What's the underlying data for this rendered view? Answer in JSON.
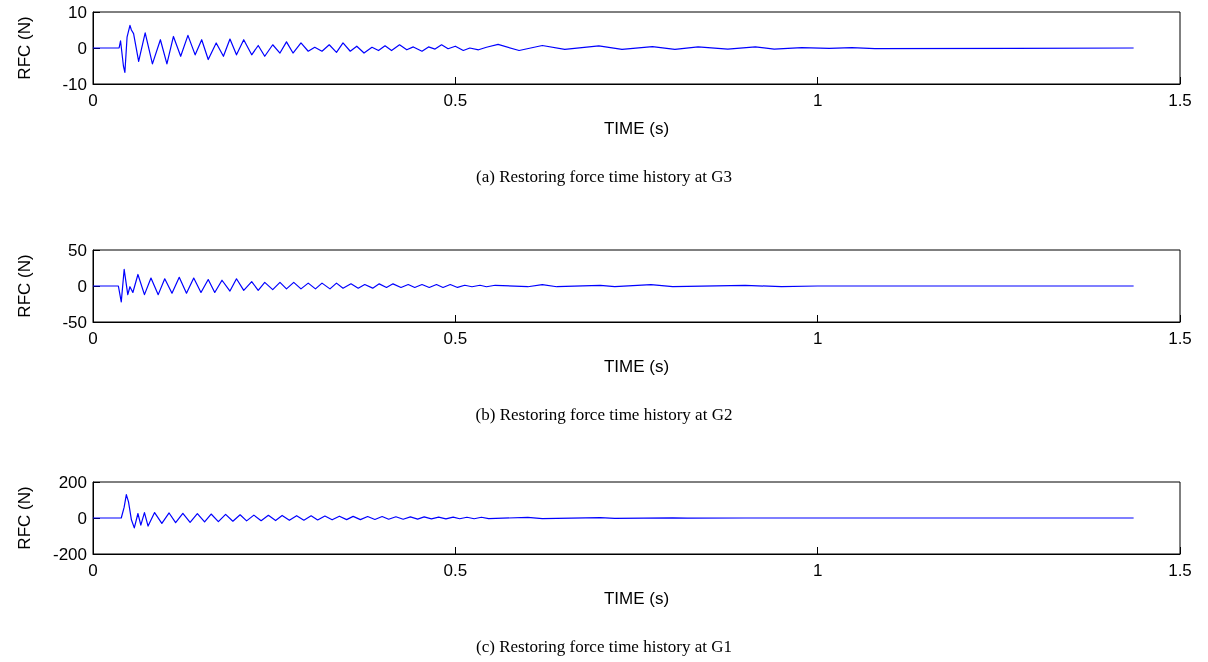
{
  "chart_data": [
    {
      "type": "line",
      "xlabel": "TIME (s)",
      "ylabel": "RFC (N)",
      "annotations": [
        "(a) Restoring force time history at G3"
      ],
      "xlim": [
        0,
        1.5
      ],
      "xticks": [
        0,
        0.5,
        1,
        1.5
      ],
      "ylim": [
        -10,
        10
      ],
      "yticks": [
        -10,
        0,
        10
      ],
      "grid": false,
      "marker": "none",
      "line_style": "solid",
      "series": [
        {
          "color": "#0000ff",
          "x": [
            0,
            0.036,
            0.038,
            0.042,
            0.044,
            0.047,
            0.051,
            0.053,
            0.056,
            0.063,
            0.072,
            0.082,
            0.093,
            0.102,
            0.111,
            0.121,
            0.131,
            0.141,
            0.15,
            0.159,
            0.17,
            0.18,
            0.189,
            0.198,
            0.208,
            0.219,
            0.228,
            0.237,
            0.248,
            0.258,
            0.267,
            0.276,
            0.287,
            0.297,
            0.306,
            0.316,
            0.326,
            0.336,
            0.345,
            0.355,
            0.364,
            0.374,
            0.385,
            0.394,
            0.403,
            0.412,
            0.423,
            0.433,
            0.442,
            0.454,
            0.463,
            0.472,
            0.481,
            0.49,
            0.5,
            0.511,
            0.52,
            0.532,
            0.543,
            0.559,
            0.588,
            0.62,
            0.651,
            0.698,
            0.73,
            0.772,
            0.803,
            0.835,
            0.876,
            0.914,
            0.94,
            0.978,
            1.016,
            1.047,
            1.079,
            1.436
          ],
          "values": [
            0,
            0,
            2,
            -5,
            -6.8,
            3,
            6.3,
            5,
            4,
            -3.7,
            4.2,
            -4.4,
            2.3,
            -4.4,
            3.2,
            -2.3,
            3.5,
            -1.9,
            2.3,
            -3.2,
            1.4,
            -2.3,
            2.5,
            -1.9,
            2.3,
            -1.9,
            0.7,
            -2.3,
            0.9,
            -1.4,
            1.7,
            -1.4,
            1.4,
            -0.9,
            0.2,
            -0.9,
            0.9,
            -1.2,
            1.4,
            -0.9,
            0.5,
            -1.4,
            0.2,
            -0.7,
            0.6,
            -0.7,
            0.9,
            -0.5,
            0.3,
            -0.9,
            0.3,
            -0.3,
            0.9,
            -0.2,
            0.5,
            -0.7,
            0,
            -0.5,
            0.2,
            1,
            -0.7,
            0.7,
            -0.4,
            0.6,
            -0.4,
            0.4,
            -0.4,
            0.3,
            -0.3,
            0.3,
            -0.3,
            0.1,
            -0.1,
            0.1,
            -0.2,
            0
          ]
        }
      ]
    },
    {
      "type": "line",
      "xlabel": "TIME (s)",
      "ylabel": "RFC (N)",
      "annotations": [
        "(b) Restoring force time history at G2"
      ],
      "xlim": [
        0,
        1.5
      ],
      "xticks": [
        0,
        0.5,
        1,
        1.5
      ],
      "ylim": [
        -50,
        50
      ],
      "yticks": [
        -50,
        0,
        50
      ],
      "grid": false,
      "marker": "none",
      "line_style": "solid",
      "series": [
        {
          "color": "#0000ff",
          "x": [
            0,
            0.035,
            0.039,
            0.043,
            0.048,
            0.051,
            0.055,
            0.062,
            0.071,
            0.08,
            0.09,
            0.099,
            0.109,
            0.119,
            0.129,
            0.139,
            0.149,
            0.159,
            0.168,
            0.178,
            0.189,
            0.198,
            0.208,
            0.219,
            0.228,
            0.237,
            0.248,
            0.258,
            0.267,
            0.277,
            0.287,
            0.297,
            0.307,
            0.316,
            0.327,
            0.336,
            0.345,
            0.356,
            0.366,
            0.375,
            0.386,
            0.395,
            0.405,
            0.414,
            0.425,
            0.435,
            0.444,
            0.454,
            0.464,
            0.474,
            0.483,
            0.493,
            0.503,
            0.513,
            0.523,
            0.534,
            0.543,
            0.555,
            0.6,
            0.62,
            0.64,
            0.7,
            0.72,
            0.77,
            0.8,
            0.9,
            0.95,
            1.0,
            1.436
          ],
          "values": [
            0,
            0,
            -22,
            23,
            -12,
            -1,
            -9,
            16,
            -12,
            11,
            -12,
            10,
            -10,
            12,
            -10,
            11,
            -9,
            9,
            -9,
            8,
            -7,
            10,
            -6,
            6,
            -6,
            5,
            -5,
            5,
            -4,
            5,
            -4,
            4,
            -4,
            4,
            -4,
            4,
            -3,
            3,
            -3,
            2,
            -3,
            3,
            -2,
            3,
            -2,
            2,
            -2,
            2,
            -2,
            2,
            -2,
            2,
            -2,
            1,
            -1,
            1,
            -1,
            1,
            -1,
            2,
            -1,
            1,
            -1,
            2,
            -1,
            1,
            -1,
            0,
            0
          ]
        }
      ]
    },
    {
      "type": "line",
      "xlabel": "TIME (s)",
      "ylabel": "RFC (N)",
      "annotations": [
        "(c) Restoring force time history at G1"
      ],
      "xlim": [
        0,
        1.5
      ],
      "xticks": [
        0,
        0.5,
        1,
        1.5
      ],
      "ylim": [
        -200,
        200
      ],
      "yticks": [
        -200,
        0,
        200
      ],
      "grid": false,
      "marker": "none",
      "line_style": "solid",
      "series": [
        {
          "color": "#0000ff",
          "x": [
            0,
            0.035,
            0.039,
            0.043,
            0.046,
            0.049,
            0.053,
            0.057,
            0.062,
            0.066,
            0.071,
            0.076,
            0.085,
            0.095,
            0.105,
            0.114,
            0.124,
            0.134,
            0.144,
            0.154,
            0.163,
            0.173,
            0.183,
            0.193,
            0.203,
            0.212,
            0.222,
            0.232,
            0.242,
            0.252,
            0.261,
            0.271,
            0.281,
            0.291,
            0.301,
            0.31,
            0.32,
            0.33,
            0.34,
            0.35,
            0.359,
            0.369,
            0.379,
            0.389,
            0.399,
            0.408,
            0.418,
            0.428,
            0.438,
            0.448,
            0.457,
            0.467,
            0.477,
            0.487,
            0.497,
            0.506,
            0.516,
            0.526,
            0.536,
            0.546,
            0.6,
            0.62,
            0.7,
            0.72,
            0.8,
            0.82,
            0.9,
            1.436
          ],
          "values": [
            0,
            0,
            0,
            60,
            130,
            90,
            -10,
            -55,
            25,
            -40,
            30,
            -45,
            30,
            -30,
            28,
            -26,
            26,
            -24,
            24,
            -22,
            22,
            -20,
            20,
            -18,
            18,
            -16,
            16,
            -15,
            15,
            -14,
            14,
            -13,
            13,
            -12,
            12,
            -11,
            11,
            -10,
            10,
            -9,
            9,
            -9,
            8,
            -8,
            8,
            -7,
            7,
            -7,
            6,
            -6,
            6,
            -5,
            5,
            -5,
            5,
            -4,
            4,
            -4,
            4,
            -3,
            3,
            -3,
            2,
            -2,
            1,
            -1,
            0,
            0
          ]
        }
      ]
    }
  ]
}
